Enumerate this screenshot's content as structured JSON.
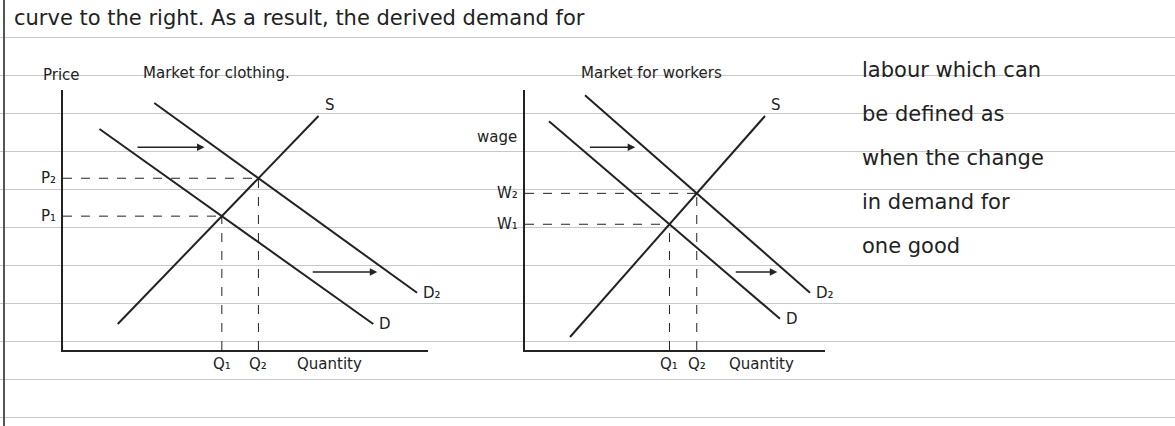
{
  "header_text": "curve to the right. As a result, the derived demand for",
  "side_text": [
    "labour which can",
    "be defined as",
    "when the change",
    "in demand for",
    "one good"
  ],
  "chart_data": [
    {
      "type": "line",
      "title": "Market for clothing.",
      "y_label": "Price",
      "x_label": "Quantity",
      "xlim": [
        0,
        10
      ],
      "ylim": [
        0,
        10
      ],
      "tick_labels": false,
      "grid": false,
      "color": "#222222",
      "series": [
        {
          "name": "S",
          "x": [
            1.5,
            7
          ],
          "values": [
            1,
            9
          ]
        },
        {
          "name": "D",
          "x": [
            1,
            8.5
          ],
          "values": [
            8.5,
            1
          ]
        },
        {
          "name": "D₂",
          "x": [
            2.5,
            9.7
          ],
          "values": [
            9.5,
            2.2
          ]
        }
      ],
      "equilibria": [
        {
          "supply": "S",
          "demand": "D",
          "x_label": "Q₁",
          "y_label": "P₁"
        },
        {
          "supply": "S",
          "demand": "D₂",
          "x_label": "Q₂",
          "y_label": "P₂"
        }
      ]
    },
    {
      "type": "line",
      "title": "Market for workers",
      "y_label": "wage",
      "x_label": "Quantity",
      "xlim": [
        0,
        10
      ],
      "ylim": [
        0,
        10
      ],
      "tick_labels": false,
      "grid": false,
      "color": "#222222",
      "series": [
        {
          "name": "S",
          "x": [
            1.5,
            8
          ],
          "values": [
            0.5,
            9
          ]
        },
        {
          "name": "D",
          "x": [
            0.8,
            8.5
          ],
          "values": [
            8.8,
            1.2
          ]
        },
        {
          "name": "D₂",
          "x": [
            2,
            9.5
          ],
          "values": [
            9.8,
            2.2
          ]
        }
      ],
      "equilibria": [
        {
          "supply": "S",
          "demand": "D",
          "x_label": "Q₁",
          "y_label": "W₁"
        },
        {
          "supply": "S",
          "demand": "D₂",
          "x_label": "Q₂",
          "y_label": "W₂"
        }
      ]
    }
  ]
}
